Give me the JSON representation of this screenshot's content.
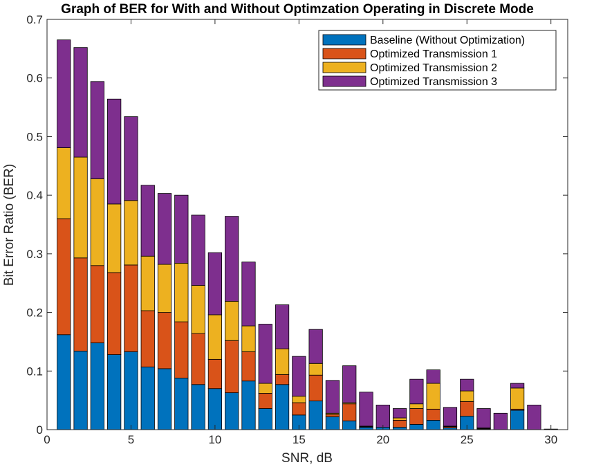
{
  "chart_data": {
    "type": "bar",
    "stacked": true,
    "title": "Graph of BER for With and Without Optimzation Operating in Discrete Mode",
    "xlabel": "SNR, dB",
    "ylabel": "Bit Error Ratio (BER)",
    "xlim": [
      0,
      31
    ],
    "ylim": [
      0,
      0.7
    ],
    "xticks": [
      0,
      5,
      10,
      15,
      20,
      25,
      30
    ],
    "yticks": [
      0,
      0.1,
      0.2,
      0.3,
      0.4,
      0.5,
      0.6,
      0.7
    ],
    "x": [
      1,
      2,
      3,
      4,
      5,
      6,
      7,
      8,
      9,
      10,
      11,
      12,
      13,
      14,
      15,
      16,
      17,
      18,
      19,
      20,
      21,
      22,
      23,
      24,
      25,
      26,
      27,
      28,
      29,
      30
    ],
    "series": [
      {
        "name": "Baseline (Without Optimization)",
        "color": "#0072BD",
        "values": [
          0.162,
          0.134,
          0.148,
          0.128,
          0.133,
          0.107,
          0.104,
          0.088,
          0.077,
          0.07,
          0.063,
          0.083,
          0.036,
          0.077,
          0.025,
          0.049,
          0.022,
          0.015,
          0.004,
          0.004,
          0.004,
          0.009,
          0.016,
          0.003,
          0.023,
          0.001,
          0.0,
          0.033,
          0.0,
          0.0
        ]
      },
      {
        "name": "Optimized Transmission 1",
        "color": "#D95319",
        "values": [
          0.198,
          0.159,
          0.132,
          0.14,
          0.148,
          0.096,
          0.096,
          0.096,
          0.087,
          0.05,
          0.089,
          0.05,
          0.026,
          0.017,
          0.021,
          0.044,
          0.004,
          0.029,
          0.001,
          0.0,
          0.012,
          0.027,
          0.019,
          0.002,
          0.025,
          0.001,
          0.0,
          0.002,
          0.0,
          0.0
        ]
      },
      {
        "name": "Optimized Transmission 2",
        "color": "#EDB120",
        "values": [
          0.121,
          0.172,
          0.148,
          0.117,
          0.11,
          0.093,
          0.082,
          0.1,
          0.082,
          0.076,
          0.067,
          0.044,
          0.017,
          0.044,
          0.011,
          0.02,
          0.002,
          0.002,
          0.001,
          0.0,
          0.004,
          0.008,
          0.044,
          0.001,
          0.018,
          0.001,
          0.0,
          0.036,
          0.0,
          0.0
        ]
      },
      {
        "name": "Optimized Transmission 3",
        "color": "#7E2F8E",
        "values": [
          0.184,
          0.187,
          0.166,
          0.179,
          0.143,
          0.121,
          0.121,
          0.116,
          0.12,
          0.106,
          0.145,
          0.109,
          0.101,
          0.075,
          0.068,
          0.058,
          0.056,
          0.063,
          0.058,
          0.038,
          0.016,
          0.042,
          0.023,
          0.032,
          0.02,
          0.033,
          0.028,
          0.008,
          0.042,
          0.001
        ]
      }
    ],
    "legend_position": "top-right",
    "grid": false
  }
}
